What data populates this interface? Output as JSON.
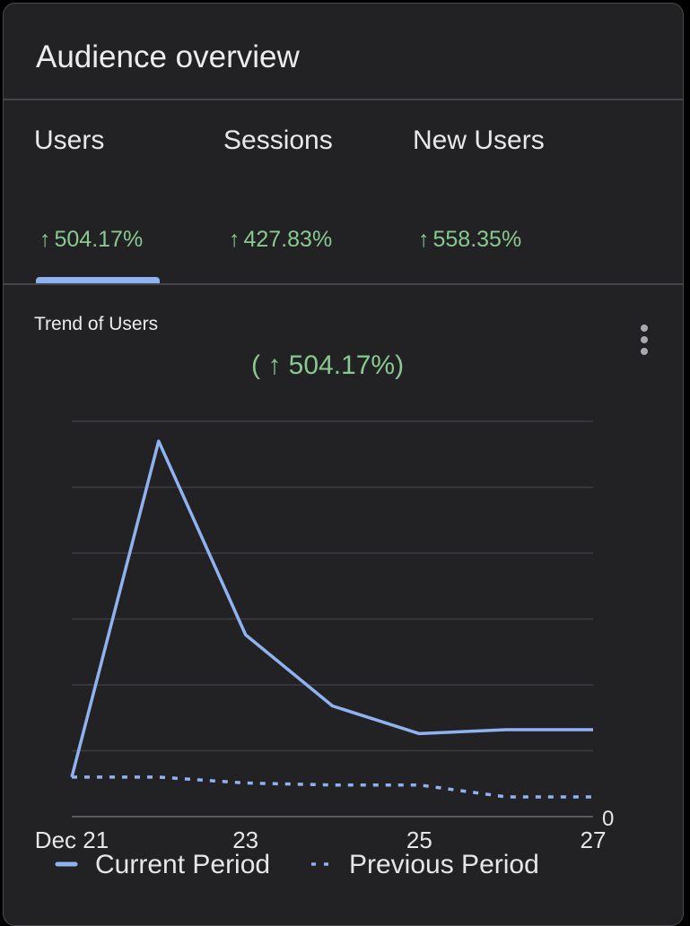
{
  "header": {
    "title": "Audience overview"
  },
  "tabs": [
    {
      "label": "Users",
      "change": "504.17%"
    },
    {
      "label": "Sessions",
      "change": "427.83%"
    },
    {
      "label": "New Users",
      "change": "558.35%"
    }
  ],
  "selected_tab": "Users",
  "arrow_glyph": "↑",
  "chart": {
    "title": "Trend of Users",
    "change_text": "( ↑ 504.17%)"
  },
  "chart_data": {
    "type": "line",
    "title": "Trend of Users",
    "x": [
      "Dec 21",
      "22",
      "23",
      "24",
      "25",
      "26",
      "27"
    ],
    "x_tick_labels": [
      "Dec 21",
      "23",
      "25",
      "27"
    ],
    "y_tick_labels": [
      "0"
    ],
    "ylim": [
      0,
      100
    ],
    "series": [
      {
        "name": "Current Period",
        "style": "solid",
        "color": "#8fb3f0",
        "values": [
          10,
          95,
          46,
          28,
          21,
          22,
          22
        ]
      },
      {
        "name": "Previous Period",
        "style": "dashed",
        "color": "#8fb3f0",
        "values": [
          10,
          10,
          8.5,
          8,
          8,
          5,
          5
        ]
      }
    ],
    "grid": true,
    "legend": "bottom"
  },
  "colors": {
    "background": "#222124",
    "accent": "#8fb3f0",
    "positive": "#87c98f",
    "text": "#ececec",
    "gridline": "#3c3c40"
  },
  "icons": {
    "more": "more-vert-icon"
  }
}
